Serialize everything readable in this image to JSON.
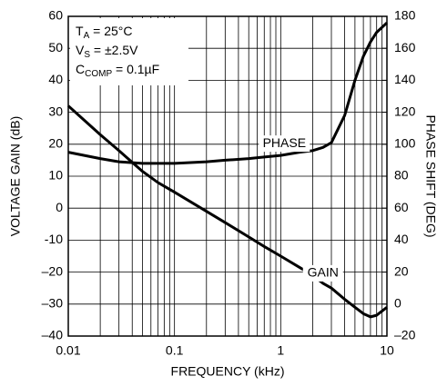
{
  "chart_data": {
    "type": "line",
    "xlabel": "FREQUENCY (kHz)",
    "ylabel": "VOLTAGE GAIN (dB)",
    "y2label": "PHASE SHIFT (DEG)",
    "log_x": true,
    "grid": true,
    "xlim": [
      0.01,
      10
    ],
    "xticks": [
      0.01,
      0.1,
      1,
      10
    ],
    "x_grid": [
      0.02,
      0.03,
      0.04,
      0.05,
      0.06,
      0.07,
      0.08,
      0.09,
      0.2,
      0.3,
      0.4,
      0.5,
      0.6,
      0.7,
      0.8,
      0.9,
      2,
      3,
      4,
      5,
      6,
      7,
      8,
      9
    ],
    "ylim": [
      -40,
      60
    ],
    "yticks": [
      {
        "value": -40,
        "label": "–40"
      },
      {
        "value": -30,
        "label": "–30"
      },
      {
        "value": -20,
        "label": "–20"
      },
      {
        "value": -10,
        "label": "-10"
      },
      0,
      10,
      20,
      30,
      40,
      50,
      60
    ],
    "y2lim": [
      -20,
      180
    ],
    "y2ticks": [
      {
        "value": -20,
        "label": "–20"
      },
      0,
      20,
      40,
      60,
      80,
      100,
      120,
      140,
      160,
      180
    ],
    "x": [
      0.01,
      0.02,
      0.03,
      0.05,
      0.07,
      0.1,
      0.2,
      0.3,
      0.5,
      0.7,
      1,
      1.5,
      2,
      2.5,
      3,
      4,
      5,
      6,
      7,
      8,
      10
    ],
    "series": [
      {
        "name": "GAIN",
        "color": "#000000",
        "values": [
          32,
          23,
          18,
          11.5,
          8,
          5,
          -1,
          -4.5,
          -9,
          -12,
          -15,
          -18.5,
          -21,
          -23.5,
          -25,
          -28.5,
          -31,
          -33,
          -34,
          -33.5,
          -31
        ]
      },
      {
        "name": "PHASE",
        "color": "#000000",
        "axis": "y2",
        "values": [
          95,
          91,
          89,
          88,
          88,
          88,
          89,
          90,
          91,
          92,
          93,
          95,
          96,
          98,
          101,
          118,
          140,
          155,
          164,
          170,
          176
        ]
      }
    ],
    "annotations": [
      {
        "main": "T",
        "sub": "A",
        "rest": " = 25°C"
      },
      {
        "main": "V",
        "sub": "S",
        "rest": " = ±2.5V"
      },
      {
        "main": "C",
        "sub": "COMP",
        "rest": " = 0.1µF"
      }
    ]
  }
}
